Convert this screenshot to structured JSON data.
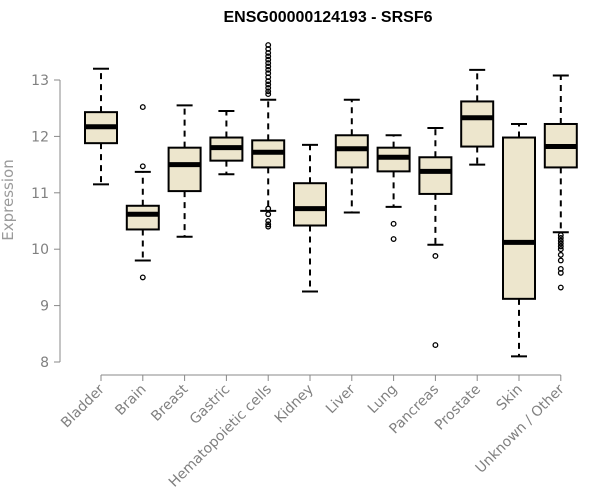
{
  "chart_data": {
    "type": "boxplot",
    "title": "ENSG00000124193 - SRSF6",
    "xlabel": "",
    "ylabel": "Expression",
    "ylim": [
      8,
      13.6
    ],
    "yticks": [
      8,
      9,
      10,
      11,
      12,
      13
    ],
    "grid": false,
    "legend": "none",
    "box_fill": "#ede6cd",
    "outline_color": "#000000",
    "median_color": "#000000",
    "categories": [
      "Bladder",
      "Brain",
      "Breast",
      "Gastric",
      "Hematopoietic cells",
      "Kidney",
      "Liver",
      "Lung",
      "Pancreas",
      "Prostate",
      "Skin",
      "Unknown / Other"
    ],
    "boxes": [
      {
        "category": "Bladder",
        "whisker_low": 11.15,
        "q1": 11.88,
        "median": 12.17,
        "q3": 12.43,
        "whisker_high": 13.2,
        "outliers": []
      },
      {
        "category": "Brain",
        "whisker_low": 9.8,
        "q1": 10.35,
        "median": 10.62,
        "q3": 10.77,
        "whisker_high": 11.37,
        "outliers": [
          9.5,
          11.47,
          12.52
        ]
      },
      {
        "category": "Breast",
        "whisker_low": 10.22,
        "q1": 11.03,
        "median": 11.5,
        "q3": 11.8,
        "whisker_high": 12.55,
        "outliers": []
      },
      {
        "category": "Gastric",
        "whisker_low": 11.33,
        "q1": 11.57,
        "median": 11.8,
        "q3": 11.98,
        "whisker_high": 12.45,
        "outliers": []
      },
      {
        "category": "Hematopoietic cells",
        "whisker_low": 10.68,
        "q1": 11.45,
        "median": 11.72,
        "q3": 11.93,
        "whisker_high": 12.65,
        "outliers": [
          10.4,
          10.44,
          10.5,
          10.62,
          10.72,
          12.75,
          12.8,
          12.86,
          12.92,
          12.98,
          13.05,
          13.12,
          13.18,
          13.24,
          13.3,
          13.36,
          13.42,
          13.48,
          13.55,
          13.62
        ]
      },
      {
        "category": "Kidney",
        "whisker_low": 9.25,
        "q1": 10.42,
        "median": 10.72,
        "q3": 11.17,
        "whisker_high": 11.85,
        "outliers": []
      },
      {
        "category": "Liver",
        "whisker_low": 10.65,
        "q1": 11.45,
        "median": 11.78,
        "q3": 12.02,
        "whisker_high": 12.65,
        "outliers": []
      },
      {
        "category": "Lung",
        "whisker_low": 10.75,
        "q1": 11.38,
        "median": 11.63,
        "q3": 11.8,
        "whisker_high": 12.02,
        "outliers": [
          10.18,
          10.45
        ]
      },
      {
        "category": "Pancreas",
        "whisker_low": 10.08,
        "q1": 10.98,
        "median": 11.38,
        "q3": 11.63,
        "whisker_high": 12.15,
        "outliers": [
          8.3,
          9.88
        ]
      },
      {
        "category": "Prostate",
        "whisker_low": 11.5,
        "q1": 11.82,
        "median": 12.33,
        "q3": 12.62,
        "whisker_high": 13.18,
        "outliers": []
      },
      {
        "category": "Skin",
        "whisker_low": 8.1,
        "q1": 9.12,
        "median": 10.12,
        "q3": 11.98,
        "whisker_high": 12.22,
        "outliers": []
      },
      {
        "category": "Unknown / Other",
        "whisker_low": 10.3,
        "q1": 11.45,
        "median": 11.82,
        "q3": 12.22,
        "whisker_high": 13.08,
        "outliers": [
          9.32,
          9.58,
          9.65,
          9.8,
          9.9,
          10.0,
          10.05,
          10.1,
          10.15,
          10.2,
          10.25
        ]
      }
    ]
  }
}
